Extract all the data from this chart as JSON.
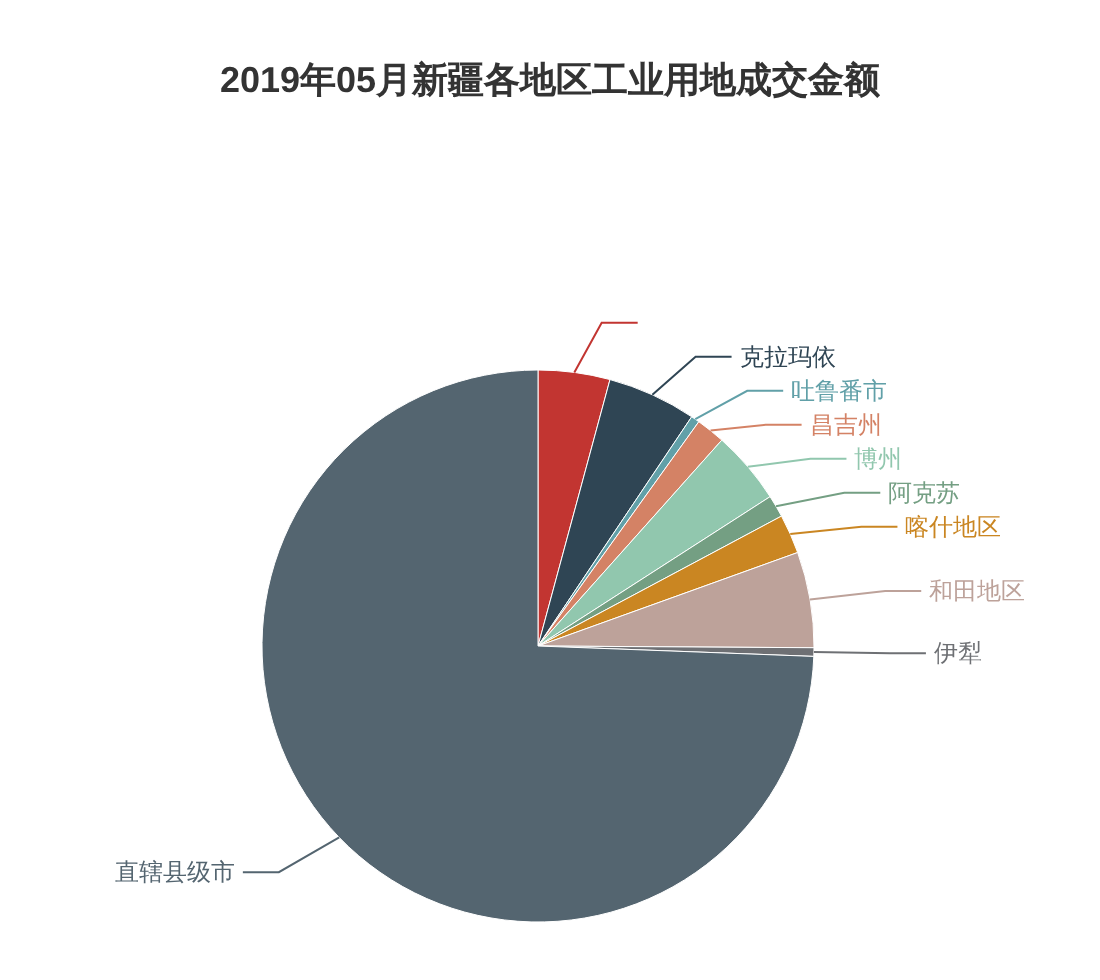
{
  "chart_data": {
    "type": "pie",
    "title": "2019年05月新疆各地区工业用地成交金额",
    "categories": [
      null,
      "克拉玛依",
      "吐鲁番市",
      "昌吉州",
      "博州",
      "阿克苏",
      "喀什地区",
      "和田地区",
      "伊犁",
      "直辖县级市"
    ],
    "values": [
      4.2,
      5.2,
      0.5,
      1.7,
      4.3,
      1.3,
      2.3,
      5.6,
      0.5,
      74.4
    ],
    "colors": [
      "#c23531",
      "#2f4554",
      "#61a0a8",
      "#d48265",
      "#91c7ae",
      "#749f83",
      "#ca8622",
      "#bda29a",
      "#6e7074",
      "#546570"
    ]
  }
}
